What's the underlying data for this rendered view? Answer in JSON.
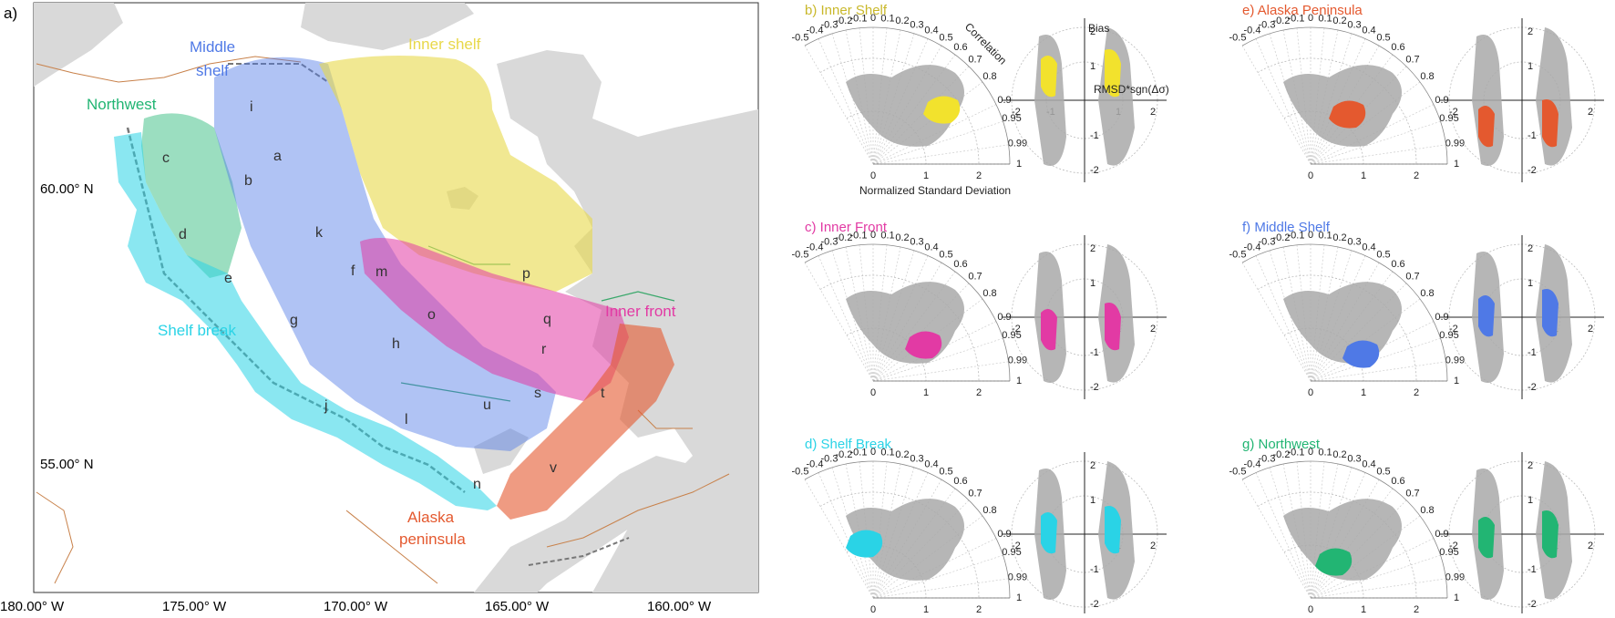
{
  "map": {
    "panel_label": "a)",
    "lat_labels": [
      "60.00° N",
      "55.00° N"
    ],
    "lon_labels": [
      "180.00° W",
      "175.00° W",
      "170.00° W",
      "165.00° W",
      "160.00° W"
    ],
    "regions": [
      {
        "key": "northwest",
        "name": "Northwest",
        "color": "#22b573"
      },
      {
        "key": "middle",
        "name": "Middle\nshelf",
        "color": "#4f79e6"
      },
      {
        "key": "inner",
        "name": "Inner shelf",
        "color": "#e8d84a"
      },
      {
        "key": "innerfront",
        "name": "Inner front",
        "color": "#e23aa4"
      },
      {
        "key": "shelfbreak",
        "name": "Shelf break",
        "color": "#2ad3e6"
      },
      {
        "key": "alaska",
        "name": "Alaska\npeninsula",
        "color": "#e4592f"
      }
    ],
    "stations": [
      "a",
      "b",
      "c",
      "d",
      "e",
      "f",
      "g",
      "h",
      "i",
      "j",
      "k",
      "l",
      "m",
      "n",
      "o",
      "p",
      "q",
      "r",
      "s",
      "t",
      "u",
      "v"
    ]
  },
  "panels": [
    {
      "id": "b",
      "title": "b) Inner Shelf",
      "color": "#c9b82a",
      "fill": "#f2e22d",
      "annotated": true
    },
    {
      "id": "c",
      "title": "c) Inner Front",
      "color": "#e23aa4",
      "fill": "#e23aa4",
      "annotated": false
    },
    {
      "id": "d",
      "title": "d) Shelf Break",
      "color": "#2ad3e6",
      "fill": "#2ad3e6",
      "annotated": false
    },
    {
      "id": "e",
      "title": "e) Alaska Peninsula",
      "color": "#e4592f",
      "fill": "#e4592f",
      "annotated": false
    },
    {
      "id": "f",
      "title": "f) Middle Shelf",
      "color": "#4f79e6",
      "fill": "#4f79e6",
      "annotated": false
    },
    {
      "id": "g",
      "title": "g) Northwest",
      "color": "#22b573",
      "fill": "#22b573",
      "annotated": false
    }
  ],
  "taylor": {
    "corr_ticks": [
      "-0.5",
      "-0.4",
      "-0.3",
      "-0.2",
      "-0.1",
      "0",
      "0.1",
      "0.2",
      "0.3",
      "0.4",
      "0.5",
      "0.6",
      "0.7",
      "0.8",
      "0.9",
      "0.95",
      "0.99",
      "1"
    ],
    "std_ticks": [
      "0",
      "1",
      "2"
    ],
    "corr_label": "Correlation",
    "std_label": "Normalized Standard Deviation"
  },
  "target": {
    "x_ticks": [
      "-2",
      "-1",
      "1",
      "2"
    ],
    "y_ticks": [
      "2",
      "1",
      "-1",
      "-2"
    ],
    "bias_label": "Bias",
    "rmsd_label": "RMSD*sgn(Δσ)"
  },
  "colors": {
    "gray": "#a9a9a9",
    "land": "#d9d9d9",
    "contour": "#c8814a"
  }
}
